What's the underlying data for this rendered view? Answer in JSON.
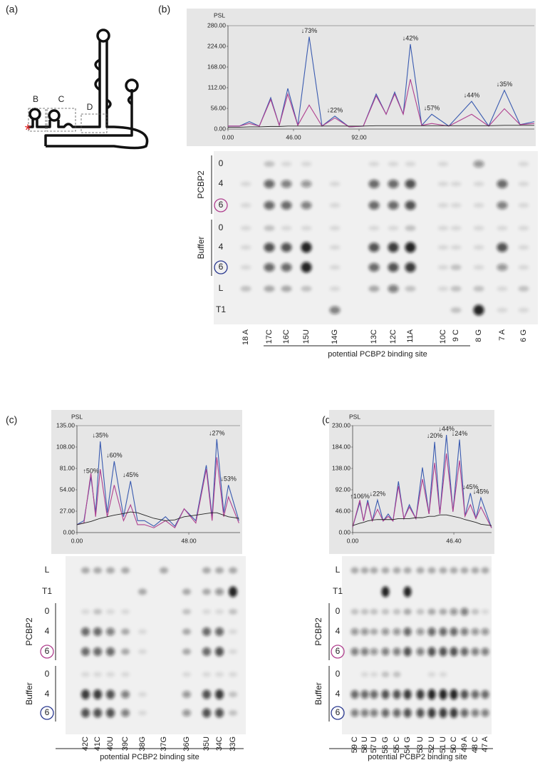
{
  "panels": [
    {
      "label": "(a)",
      "domains": [
        "B",
        "C",
        "D"
      ],
      "marker": "*"
    },
    {
      "label": "(b)"
    },
    {
      "label": "(c)"
    },
    {
      "label": "(d)"
    }
  ],
  "chart_data": [
    {
      "type": "line",
      "y_label": "PSL",
      "xlim": [
        0,
        215
      ],
      "xticks": [
        {
          "value": 0,
          "label": "0.00"
        },
        {
          "value": 46,
          "label": "46.00"
        },
        {
          "value": 92,
          "label": "92.00"
        }
      ],
      "ylim": [
        0,
        280
      ],
      "yticks": [
        {
          "value": 0,
          "label": "0.00"
        },
        {
          "value": 56,
          "label": "56.00"
        },
        {
          "value": 112,
          "label": "112.00"
        },
        {
          "value": 168,
          "label": "168.00"
        },
        {
          "value": 224,
          "label": "224.00"
        },
        {
          "value": 280,
          "label": "280.00"
        }
      ],
      "x": [
        0,
        8,
        15,
        22,
        30,
        36,
        42,
        49,
        57,
        66,
        75,
        85,
        95,
        104,
        111,
        117,
        123,
        128,
        136,
        143,
        155,
        171,
        183,
        194,
        205,
        215
      ],
      "series": [
        {
          "color": "#3a5bb0",
          "values": [
            8,
            8,
            20,
            8,
            85,
            10,
            110,
            10,
            250,
            8,
            35,
            6,
            8,
            95,
            40,
            100,
            40,
            230,
            10,
            40,
            8,
            75,
            8,
            105,
            12,
            20
          ]
        },
        {
          "color": "#b0408f",
          "values": [
            8,
            8,
            15,
            8,
            80,
            10,
            95,
            10,
            65,
            8,
            30,
            6,
            8,
            90,
            40,
            95,
            40,
            135,
            10,
            15,
            8,
            40,
            8,
            55,
            12,
            15
          ]
        },
        {
          "color": "#222222",
          "values": [
            5,
            5,
            6,
            6,
            7,
            7,
            8,
            8,
            8,
            8,
            8,
            8,
            8,
            9,
            9,
            9,
            9,
            9,
            9,
            9,
            9,
            9,
            9,
            10,
            10,
            10
          ]
        }
      ],
      "annotations": [
        "↓73%",
        "↓22%",
        "↓42%",
        "↓57%",
        "↓44%",
        "↓35%"
      ]
    },
    {
      "type": "line",
      "y_label": "PSL",
      "xlim": [
        0,
        70
      ],
      "xticks": [
        {
          "value": 0,
          "label": "0.00"
        },
        {
          "value": 48,
          "label": "48.00"
        }
      ],
      "ylim": [
        0,
        135
      ],
      "yticks": [
        {
          "value": 0,
          "label": "0.00"
        },
        {
          "value": 27,
          "label": "27.00"
        },
        {
          "value": 54,
          "label": "54.00"
        },
        {
          "value": 81,
          "label": "81.00"
        },
        {
          "value": 108,
          "label": "108.00"
        },
        {
          "value": 135,
          "label": "135.00"
        }
      ],
      "x": [
        0,
        3,
        6,
        8,
        10,
        13,
        16,
        20,
        23,
        26,
        29,
        33,
        38,
        42,
        46,
        51,
        55.5,
        58,
        60,
        63,
        65,
        69.5
      ],
      "series": [
        {
          "color": "#3a5bb0",
          "values": [
            10,
            15,
            70,
            25,
            115,
            25,
            90,
            20,
            65,
            15,
            15,
            8,
            20,
            8,
            30,
            15,
            85,
            20,
            118,
            25,
            60,
            15
          ]
        },
        {
          "color": "#b0408f",
          "values": [
            10,
            12,
            75,
            20,
            80,
            20,
            60,
            15,
            35,
            10,
            10,
            6,
            15,
            6,
            30,
            12,
            80,
            15,
            95,
            20,
            45,
            12
          ]
        },
        {
          "color": "#222222",
          "values": [
            10,
            12,
            14,
            16,
            18,
            20,
            22,
            24,
            26,
            25,
            22,
            18,
            15,
            16,
            20,
            22,
            24,
            25,
            25,
            22,
            20,
            18
          ]
        }
      ],
      "annotations": [
        "↑50%",
        "↓35%",
        "↓60%",
        "↓45%",
        "↓27%",
        "↓53%"
      ]
    },
    {
      "type": "line",
      "y_label": "PSL",
      "xlim": [
        0,
        63.7
      ],
      "xticks": [
        {
          "value": 0,
          "label": "0.00"
        },
        {
          "value": 46.4,
          "label": "46.40"
        }
      ],
      "ylim": [
        0,
        230
      ],
      "yticks": [
        {
          "value": 0,
          "label": "0.00"
        },
        {
          "value": 46,
          "label": "46.00"
        },
        {
          "value": 92,
          "label": "92.00"
        },
        {
          "value": 138,
          "label": "138.00"
        },
        {
          "value": 184,
          "label": "184.00"
        },
        {
          "value": 230,
          "label": "230.00"
        }
      ],
      "x": [
        0,
        3.3,
        5,
        6.9,
        9,
        11.4,
        14,
        16.3,
        18.5,
        21,
        23.5,
        26,
        29,
        32,
        35,
        37.6,
        40,
        43,
        46,
        49,
        51.5,
        54,
        56.5,
        58.8,
        63.7
      ],
      "series": [
        {
          "color": "#3a5bb0",
          "values": [
            12,
            65,
            25,
            70,
            25,
            70,
            25,
            40,
            25,
            110,
            30,
            60,
            30,
            140,
            40,
            195,
            40,
            210,
            45,
            200,
            35,
            85,
            30,
            75,
            10
          ]
        },
        {
          "color": "#b0408f",
          "values": [
            12,
            70,
            25,
            65,
            25,
            50,
            25,
            35,
            25,
            100,
            30,
            55,
            30,
            115,
            40,
            150,
            40,
            170,
            45,
            155,
            35,
            60,
            30,
            55,
            10
          ]
        },
        {
          "color": "#222222",
          "values": [
            15,
            20,
            22,
            25,
            27,
            28,
            28,
            28,
            28,
            30,
            30,
            30,
            32,
            32,
            35,
            35,
            38,
            38,
            35,
            32,
            28,
            25,
            22,
            18,
            15
          ]
        }
      ],
      "annotations": [
        "↑106%",
        "↓22%",
        "↓20%",
        "↓44%",
        "↓24%",
        "↓45%",
        "↓45%"
      ]
    }
  ],
  "gels": [
    {
      "rows": [
        "0",
        "4",
        "6",
        "0",
        "4",
        "6",
        "L",
        "T1"
      ],
      "groups": [
        "PCBP2",
        "Buffer"
      ],
      "lanes": [
        "18 A",
        "17C",
        "16C",
        "15U",
        "14G",
        "13C",
        "12C",
        "11A",
        "10C",
        "9 C",
        "8 G",
        "7 A",
        "6 G"
      ],
      "caption": "potential PCBP2 binding site"
    },
    {
      "rows": [
        "L",
        "T1",
        "0",
        "4",
        "6",
        "0",
        "4",
        "6"
      ],
      "groups": [
        "PCBP2",
        "Buffer"
      ],
      "lanes": [
        "42C",
        "41C",
        "40U",
        "39C",
        "38G",
        "37G",
        "36G",
        "35U",
        "34C",
        "33G"
      ],
      "caption": "potential PCBP2 binding site"
    },
    {
      "rows": [
        "L",
        "T1",
        "0",
        "4",
        "6",
        "0",
        "4",
        "6"
      ],
      "groups": [
        "PCBP2",
        "Buffer"
      ],
      "lanes": [
        "59 C",
        "58 U",
        "57 U",
        "56 G",
        "55 C",
        "54 G",
        "53 U",
        "52 U",
        "51 U",
        "50 C",
        "49 A",
        "48 C",
        "47 A"
      ],
      "caption": "potential PCBP2 binding site"
    }
  ]
}
